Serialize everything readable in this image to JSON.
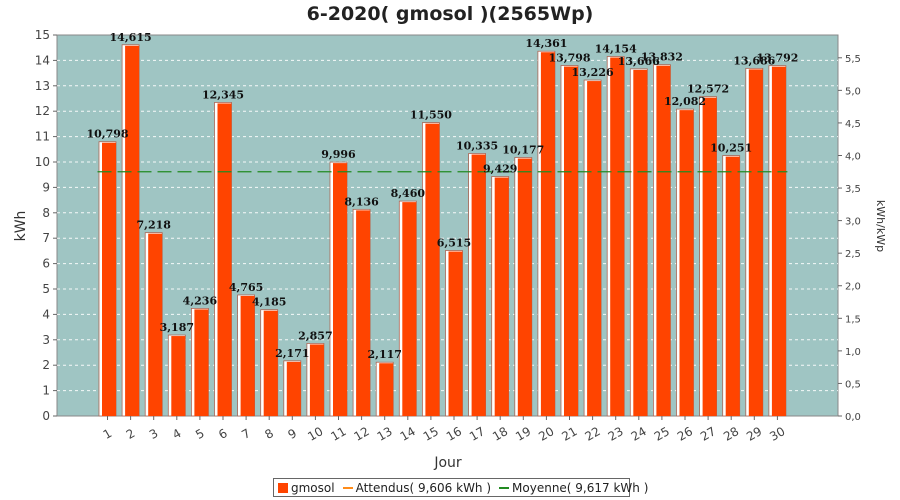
{
  "chart_data": {
    "type": "bar",
    "title": "6-2020( gmosol )(2565Wp)",
    "xlabel": "Jour",
    "ylabel": "kWh",
    "y2label": "kWh/kWp",
    "ylim": [
      0,
      15
    ],
    "y2lim": [
      0,
      5.85
    ],
    "yticks": [
      0,
      1,
      2,
      3,
      4,
      5,
      6,
      7,
      8,
      9,
      10,
      11,
      12,
      13,
      14,
      15
    ],
    "y2ticks": [
      "0,0",
      "0,5",
      "1,0",
      "1,5",
      "2,0",
      "2,5",
      "3,0",
      "3,5",
      "4,0",
      "4,5",
      "5,0",
      "5,5"
    ],
    "y2tick_values": [
      0,
      0.5,
      1.0,
      1.5,
      2.0,
      2.5,
      3.0,
      3.5,
      4.0,
      4.5,
      5.0,
      5.5
    ],
    "categories": [
      "1",
      "2",
      "3",
      "4",
      "5",
      "6",
      "7",
      "8",
      "9",
      "10",
      "11",
      "12",
      "13",
      "14",
      "15",
      "16",
      "17",
      "18",
      "19",
      "20",
      "21",
      "22",
      "23",
      "24",
      "25",
      "26",
      "27",
      "28",
      "29",
      "30"
    ],
    "values": [
      10.798,
      14.615,
      7.218,
      3.187,
      4.236,
      12.345,
      4.765,
      4.185,
      2.171,
      2.857,
      9.996,
      8.136,
      2.117,
      8.46,
      11.55,
      6.515,
      10.335,
      9.429,
      10.177,
      14.361,
      13.798,
      13.226,
      14.154,
      13.666,
      13.832,
      12.082,
      12.572,
      10.251,
      13.686,
      13.792
    ],
    "data_labels": [
      "10,798",
      "14,615",
      "7,218",
      "3,187",
      "4,236",
      "12,345",
      "4,765",
      "4,185",
      "2,171",
      "2,857",
      "9,996",
      "8,136",
      "2,117",
      "8,460",
      "11,550",
      "6,515",
      "10,335",
      "9,429",
      "10,177",
      "14,361",
      "13,798",
      "13,226",
      "14,154",
      "13,666",
      "13,832",
      "12,082",
      "12,572",
      "10,251",
      "13,686",
      "13,792"
    ],
    "moyenne": 9.617,
    "attendus": 9.606,
    "grid": true,
    "legend_position": "bottom",
    "colors": {
      "bar": "#ff4400",
      "bar_highlight": "#ffffff",
      "plot_bg": "#9fc5c3",
      "moyenne_line": "#228b22",
      "attendus_line": "#ff8c1a"
    },
    "legend": [
      {
        "label": "gmosol",
        "kind": "bar",
        "color": "#ff4400"
      },
      {
        "label": "Attendus( 9,606 kWh )",
        "kind": "line",
        "color": "#ff8c1a"
      },
      {
        "label": "Moyenne( 9,617 kWh )",
        "kind": "line",
        "color": "#228b22"
      }
    ]
  }
}
